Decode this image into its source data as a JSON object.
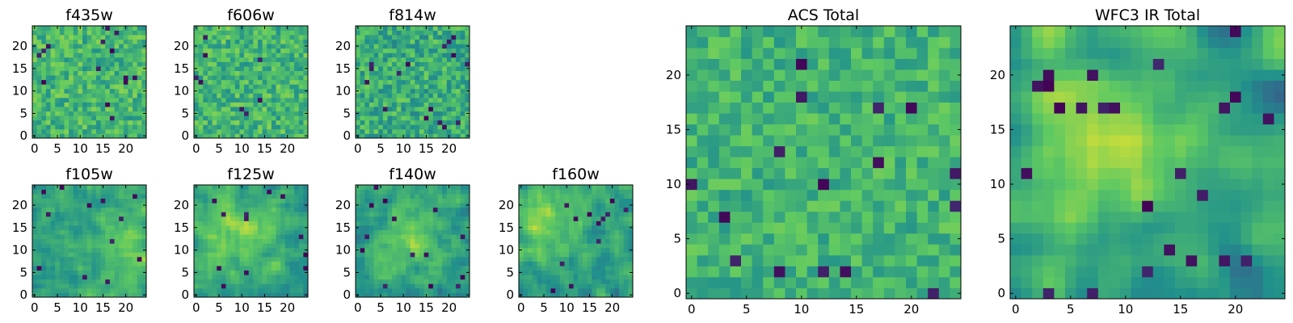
{
  "figure": {
    "colormap": "viridis",
    "colormap_stops": [
      "#440154",
      "#3b528b",
      "#21918c",
      "#5ec962",
      "#fde725"
    ]
  },
  "chart_data": [
    {
      "type": "heatmap",
      "title": "f435w",
      "grid_size": 25,
      "xlim": [
        -0.5,
        24.5
      ],
      "ylim": [
        -0.5,
        24.5
      ],
      "xticks": [
        0,
        5,
        10,
        15,
        20
      ],
      "yticks": [
        0,
        5,
        10,
        15,
        20
      ],
      "texture": "noise",
      "seed": 11,
      "smooth": 0,
      "mean": 0.66,
      "spread": 0.16,
      "dark_pixels": 14,
      "xlabel": "",
      "ylabel": "",
      "grid": false
    },
    {
      "type": "heatmap",
      "title": "f606w",
      "grid_size": 25,
      "xlim": [
        -0.5,
        24.5
      ],
      "ylim": [
        -0.5,
        24.5
      ],
      "xticks": [
        0,
        5,
        10,
        15,
        20
      ],
      "yticks": [
        0,
        5,
        10,
        15,
        20
      ],
      "texture": "noise",
      "seed": 23,
      "smooth": 0,
      "mean": 0.66,
      "spread": 0.16,
      "dark_pixels": 8,
      "xlabel": "",
      "ylabel": "",
      "grid": false
    },
    {
      "type": "heatmap",
      "title": "f814w",
      "grid_size": 25,
      "xlim": [
        -0.5,
        24.5
      ],
      "ylim": [
        -0.5,
        24.5
      ],
      "xticks": [
        0,
        5,
        10,
        15,
        20
      ],
      "yticks": [
        0,
        5,
        10,
        15,
        20
      ],
      "texture": "noise",
      "seed": 37,
      "smooth": 0,
      "mean": 0.62,
      "spread": 0.17,
      "dark_pixels": 16,
      "xlabel": "",
      "ylabel": "",
      "grid": false
    },
    {
      "type": "heatmap",
      "title": "f105w",
      "grid_size": 25,
      "xlim": [
        -0.5,
        24.5
      ],
      "ylim": [
        -0.5,
        24.5
      ],
      "xticks": [
        0,
        5,
        10,
        15,
        20
      ],
      "yticks": [
        0,
        5,
        10,
        15,
        20
      ],
      "texture": "smooth",
      "seed": 41,
      "smooth": 1,
      "mean": 0.58,
      "spread": 0.15,
      "dark_pixels": 12,
      "blob": {
        "x": 20,
        "y": 10,
        "sigma": 5,
        "amp": 0.18
      },
      "xlabel": "",
      "ylabel": "",
      "grid": false
    },
    {
      "type": "heatmap",
      "title": "f125w",
      "grid_size": 25,
      "xlim": [
        -0.5,
        24.5
      ],
      "ylim": [
        -0.5,
        24.5
      ],
      "xticks": [
        0,
        5,
        10,
        15,
        20
      ],
      "yticks": [
        0,
        5,
        10,
        15,
        20
      ],
      "texture": "smooth",
      "seed": 53,
      "smooth": 1,
      "mean": 0.58,
      "spread": 0.15,
      "dark_pixels": 12,
      "blob": {
        "x": 10,
        "y": 15,
        "sigma": 6,
        "amp": 0.2
      },
      "xlabel": "",
      "ylabel": "",
      "grid": false
    },
    {
      "type": "heatmap",
      "title": "f140w",
      "grid_size": 25,
      "xlim": [
        -0.5,
        24.5
      ],
      "ylim": [
        -0.5,
        24.5
      ],
      "xticks": [
        0,
        5,
        10,
        15,
        20
      ],
      "yticks": [
        0,
        5,
        10,
        15,
        20
      ],
      "texture": "smooth",
      "seed": 67,
      "smooth": 1,
      "mean": 0.56,
      "spread": 0.16,
      "dark_pixels": 14,
      "blob": {
        "x": 11,
        "y": 13,
        "sigma": 5,
        "amp": 0.22
      },
      "xlabel": "",
      "ylabel": "",
      "grid": false
    },
    {
      "type": "heatmap",
      "title": "f160w",
      "grid_size": 25,
      "xlim": [
        -0.5,
        24.5
      ],
      "ylim": [
        -0.5,
        24.5
      ],
      "xticks": [
        0,
        5,
        10,
        15,
        20
      ],
      "yticks": [
        0,
        5,
        10,
        15,
        20
      ],
      "texture": "smooth",
      "seed": 79,
      "smooth": 1,
      "mean": 0.56,
      "spread": 0.16,
      "dark_pixels": 12,
      "blob": {
        "x": 5,
        "y": 16,
        "sigma": 6,
        "amp": 0.24
      },
      "xlabel": "",
      "ylabel": "",
      "grid": false
    },
    {
      "type": "heatmap",
      "title": "ACS Total",
      "grid_size": 25,
      "xlim": [
        -0.5,
        24.5
      ],
      "ylim": [
        -0.5,
        24.5
      ],
      "xticks": [
        0,
        5,
        10,
        15,
        20
      ],
      "yticks": [
        0,
        5,
        10,
        15,
        20
      ],
      "texture": "noise",
      "seed": 97,
      "smooth": 0,
      "mean": 0.65,
      "spread": 0.13,
      "dark_pixels": 16,
      "xlabel": "",
      "ylabel": "",
      "grid": false
    },
    {
      "type": "heatmap",
      "title": "WFC3 IR Total",
      "grid_size": 25,
      "xlim": [
        -0.5,
        24.5
      ],
      "ylim": [
        -0.5,
        24.5
      ],
      "xticks": [
        0,
        5,
        10,
        15,
        20
      ],
      "yticks": [
        0,
        5,
        10,
        15,
        20
      ],
      "texture": "smooth",
      "seed": 113,
      "smooth": 2,
      "mean": 0.55,
      "spread": 0.16,
      "dark_pixels": 24,
      "blob": {
        "x": 7,
        "y": 14,
        "sigma": 6,
        "amp": 0.3
      },
      "xlabel": "",
      "ylabel": "",
      "grid": false
    }
  ]
}
